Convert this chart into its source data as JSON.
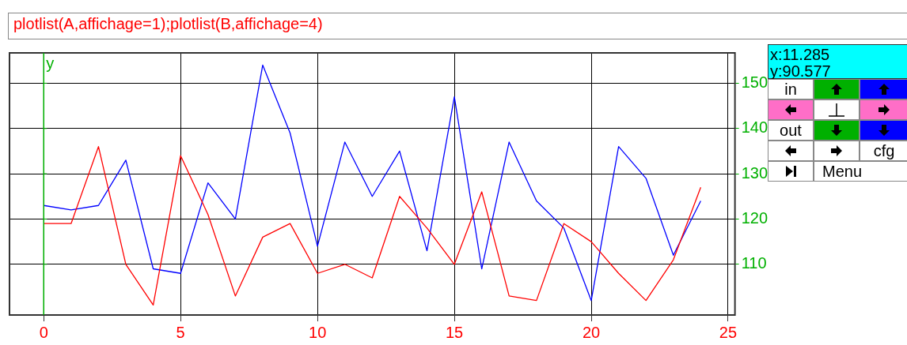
{
  "chart_data": {
    "type": "line",
    "title": "plotlist(A,affichage=1);plotlist(B,affichage=4)",
    "x": [
      0,
      1,
      2,
      3,
      4,
      5,
      6,
      7,
      8,
      9,
      10,
      11,
      12,
      13,
      14,
      15,
      16,
      17,
      18,
      19,
      20,
      21,
      22,
      23,
      24
    ],
    "series": [
      {
        "color": "#ff0000",
        "values": [
          119,
          119,
          136,
          110,
          101,
          134,
          121,
          103,
          116,
          119,
          108,
          110,
          107,
          125,
          118,
          110,
          126,
          103,
          102,
          119,
          115,
          108,
          102,
          111,
          127
        ]
      },
      {
        "color": "#0000ff",
        "values": [
          123,
          122,
          123,
          133,
          109,
          108,
          128,
          120,
          154,
          139,
          114,
          137,
          125,
          135,
          113,
          147,
          109,
          137,
          124,
          118,
          102,
          136,
          129,
          112,
          124
        ]
      }
    ],
    "xlim": [
      -1.25,
      25.25
    ],
    "xticks": [
      0,
      5,
      10,
      15,
      20,
      25
    ],
    "ylim": [
      98.8,
      156.7
    ],
    "yticks": [
      110,
      120,
      130,
      140,
      150
    ],
    "ref_lines": [
      {
        "axis": "x",
        "value": 0,
        "label": "y",
        "color": "#00b000"
      }
    ],
    "annotations": [
      "x:11.285",
      "y:90.577",
      "in",
      "out",
      "cfg",
      "Menu"
    ],
    "grid": true,
    "legend": false,
    "marker": "none",
    "line_style": "solid"
  }
}
